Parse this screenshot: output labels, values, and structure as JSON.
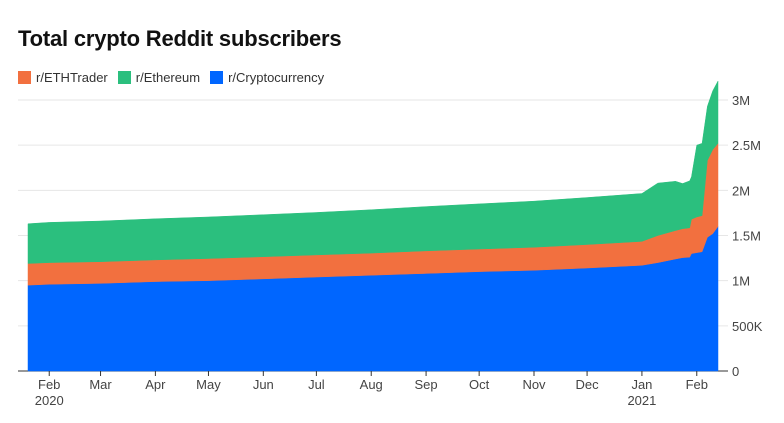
{
  "chart_data": {
    "type": "area",
    "stacked": true,
    "title": "Total crypto Reddit subscribers",
    "x_start": "2020-01-20",
    "x_end": "2021-02-13",
    "x_ticks": [
      {
        "label": "Feb",
        "date": "2020-02-01",
        "year": "2020"
      },
      {
        "label": "Mar",
        "date": "2020-03-01"
      },
      {
        "label": "Apr",
        "date": "2020-04-01"
      },
      {
        "label": "May",
        "date": "2020-05-01"
      },
      {
        "label": "Jun",
        "date": "2020-06-01"
      },
      {
        "label": "Jul",
        "date": "2020-07-01"
      },
      {
        "label": "Aug",
        "date": "2020-08-01"
      },
      {
        "label": "Sep",
        "date": "2020-09-01"
      },
      {
        "label": "Oct",
        "date": "2020-10-01"
      },
      {
        "label": "Nov",
        "date": "2020-11-01"
      },
      {
        "label": "Dec",
        "date": "2020-12-01"
      },
      {
        "label": "Jan",
        "date": "2021-01-01",
        "year": "2021"
      },
      {
        "label": "Feb",
        "date": "2021-02-01"
      }
    ],
    "y_ticks": [
      {
        "value": 0,
        "label": "0"
      },
      {
        "value": 500000,
        "label": "500K"
      },
      {
        "value": 1000000,
        "label": "1M"
      },
      {
        "value": 1500000,
        "label": "1.5M"
      },
      {
        "value": 2000000,
        "label": "2M"
      },
      {
        "value": 2500000,
        "label": "2.5M"
      },
      {
        "value": 3000000,
        "label": "3M"
      }
    ],
    "ylim": [
      0,
      3000000
    ],
    "grid": true,
    "legend_position": "top-left",
    "dates": [
      "2020-01-20",
      "2020-02-01",
      "2020-03-01",
      "2020-04-01",
      "2020-05-01",
      "2020-06-01",
      "2020-07-01",
      "2020-08-01",
      "2020-09-01",
      "2020-10-01",
      "2020-11-01",
      "2020-12-01",
      "2021-01-01",
      "2021-01-10",
      "2021-01-20",
      "2021-01-24",
      "2021-01-28",
      "2021-01-29",
      "2021-02-01",
      "2021-02-04",
      "2021-02-07",
      "2021-02-10",
      "2021-02-13"
    ],
    "series": [
      {
        "name": "r/Cryptocurrency",
        "color": "#0066ff",
        "values": [
          950000,
          960000,
          970000,
          990000,
          1000000,
          1020000,
          1040000,
          1060000,
          1080000,
          1100000,
          1115000,
          1140000,
          1170000,
          1200000,
          1240000,
          1255000,
          1260000,
          1300000,
          1310000,
          1320000,
          1480000,
          1520000,
          1600000
        ]
      },
      {
        "name": "r/ETHTrader",
        "color": "#f2703f",
        "values": [
          240000,
          240000,
          240000,
          240000,
          245000,
          245000,
          245000,
          245000,
          250000,
          250000,
          255000,
          260000,
          265000,
          300000,
          315000,
          320000,
          325000,
          380000,
          395000,
          400000,
          850000,
          930000,
          920000
        ]
      },
      {
        "name": "r/Ethereum",
        "color": "#2bbf7e",
        "values": [
          440000,
          445000,
          450000,
          455000,
          460000,
          465000,
          470000,
          480000,
          490000,
          500000,
          510000,
          520000,
          530000,
          580000,
          545000,
          500000,
          520000,
          470000,
          795000,
          800000,
          600000,
          650000,
          690000
        ]
      }
    ]
  }
}
